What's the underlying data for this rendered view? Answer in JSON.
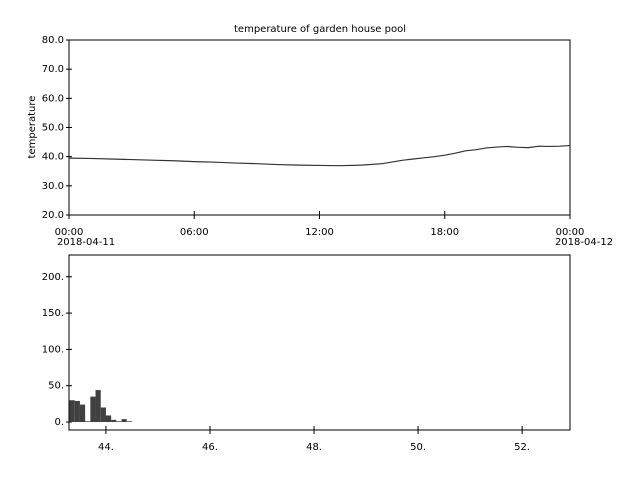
{
  "chart_data": [
    {
      "type": "line",
      "title": "temperature of garden house pool",
      "y_label": "temperature",
      "x": [
        0,
        1,
        2,
        3,
        4,
        5,
        6,
        7,
        8,
        9,
        10,
        11,
        12,
        13,
        14,
        15,
        15.5,
        16,
        16.5,
        17,
        17.5,
        18,
        18.5,
        19,
        19.5,
        20,
        20.5,
        21,
        21.5,
        22,
        22.5,
        23,
        23.5,
        24
      ],
      "series": [
        {
          "name": "temperature",
          "color": "#333333",
          "values": [
            39.5,
            39.4,
            39.2,
            39.0,
            38.8,
            38.6,
            38.3,
            38.1,
            37.8,
            37.6,
            37.3,
            37.1,
            37.0,
            36.9,
            37.1,
            37.6,
            38.2,
            38.8,
            39.2,
            39.6,
            40.0,
            40.5,
            41.2,
            42.0,
            42.4,
            43.0,
            43.3,
            43.5,
            43.2,
            43.1,
            43.6,
            43.5,
            43.6,
            43.8
          ]
        }
      ],
      "xlim": [
        0,
        24
      ],
      "xticks": [
        {
          "value": 0,
          "label": "00:00"
        },
        {
          "value": 6,
          "label": "06:00"
        },
        {
          "value": 12,
          "label": "12:00"
        },
        {
          "value": 18,
          "label": "18:00"
        },
        {
          "value": 24,
          "label": "00:00"
        }
      ],
      "x_date_labels": [
        "2018-04-11",
        "2018-04-12"
      ],
      "ylim": [
        20,
        80
      ],
      "yticks": [
        {
          "value": 20,
          "label": "20.0"
        },
        {
          "value": 30,
          "label": "30.0"
        },
        {
          "value": 40,
          "label": "40.0"
        },
        {
          "value": 50,
          "label": "50.0"
        },
        {
          "value": 60,
          "label": "60.0"
        },
        {
          "value": 70,
          "label": "70.0"
        },
        {
          "value": 80,
          "label": "80.0"
        }
      ]
    },
    {
      "type": "histogram",
      "color": "#404040",
      "bins": [
        43.3,
        43.4,
        43.5,
        43.6,
        43.7,
        43.8,
        43.9,
        44.0,
        44.1,
        44.2,
        44.3,
        44.4,
        44.5
      ],
      "values": [
        30,
        29,
        24,
        1,
        35,
        44,
        20,
        9,
        3,
        1,
        4,
        1
      ],
      "xlim": [
        43.29,
        52.92
      ],
      "xticks": [
        {
          "value": 44,
          "label": "44."
        },
        {
          "value": 46,
          "label": "46."
        },
        {
          "value": 48,
          "label": "48."
        },
        {
          "value": 50,
          "label": "50."
        },
        {
          "value": 52,
          "label": "52."
        }
      ],
      "ylim": [
        -11,
        230
      ],
      "yticks": [
        {
          "value": 0,
          "label": "0."
        },
        {
          "value": 50,
          "label": "50."
        },
        {
          "value": 100,
          "label": "100."
        },
        {
          "value": 150,
          "label": "150."
        },
        {
          "value": 200,
          "label": "200."
        }
      ]
    }
  ]
}
